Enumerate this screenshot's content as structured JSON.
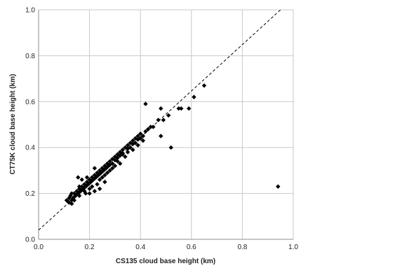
{
  "chart_data": {
    "type": "scatter",
    "title": "",
    "xlabel": "CS135 cloud base height (km)",
    "ylabel": "CT75K cloud base height (km)",
    "xlim": [
      0.0,
      1.0
    ],
    "ylim": [
      0.0,
      1.0
    ],
    "x_ticks": [
      "0.0",
      "0.2",
      "0.4",
      "0.6",
      "0.8",
      "1.0"
    ],
    "y_ticks": [
      "0.0",
      "0.2",
      "0.4",
      "0.6",
      "0.8",
      "1.0"
    ],
    "grid": true,
    "legend": "none",
    "marker": "diamond",
    "marker_color": "#000000",
    "reference_line": {
      "style": "dashed",
      "x": [
        0.0,
        0.95
      ],
      "y": [
        0.04,
        1.0
      ]
    },
    "series": [
      {
        "points": [
          [
            0.11,
            0.17
          ],
          [
            0.115,
            0.165
          ],
          [
            0.12,
            0.18
          ],
          [
            0.12,
            0.16
          ],
          [
            0.125,
            0.19
          ],
          [
            0.13,
            0.17
          ],
          [
            0.13,
            0.155
          ],
          [
            0.135,
            0.18
          ],
          [
            0.14,
            0.2
          ],
          [
            0.14,
            0.185
          ],
          [
            0.145,
            0.19
          ],
          [
            0.15,
            0.21
          ],
          [
            0.15,
            0.195
          ],
          [
            0.155,
            0.2
          ],
          [
            0.16,
            0.22
          ],
          [
            0.16,
            0.205
          ],
          [
            0.165,
            0.21
          ],
          [
            0.17,
            0.23
          ],
          [
            0.17,
            0.215
          ],
          [
            0.175,
            0.22
          ],
          [
            0.18,
            0.24
          ],
          [
            0.18,
            0.225
          ],
          [
            0.185,
            0.23
          ],
          [
            0.19,
            0.25
          ],
          [
            0.19,
            0.235
          ],
          [
            0.195,
            0.24
          ],
          [
            0.2,
            0.26
          ],
          [
            0.2,
            0.245
          ],
          [
            0.205,
            0.25
          ],
          [
            0.21,
            0.27
          ],
          [
            0.21,
            0.255
          ],
          [
            0.215,
            0.26
          ],
          [
            0.22,
            0.28
          ],
          [
            0.22,
            0.265
          ],
          [
            0.225,
            0.27
          ],
          [
            0.23,
            0.29
          ],
          [
            0.23,
            0.275
          ],
          [
            0.235,
            0.28
          ],
          [
            0.24,
            0.3
          ],
          [
            0.24,
            0.285
          ],
          [
            0.245,
            0.29
          ],
          [
            0.25,
            0.31
          ],
          [
            0.25,
            0.295
          ],
          [
            0.255,
            0.3
          ],
          [
            0.26,
            0.32
          ],
          [
            0.26,
            0.305
          ],
          [
            0.265,
            0.31
          ],
          [
            0.27,
            0.33
          ],
          [
            0.27,
            0.315
          ],
          [
            0.275,
            0.32
          ],
          [
            0.28,
            0.34
          ],
          [
            0.28,
            0.325
          ],
          [
            0.29,
            0.33
          ],
          [
            0.29,
            0.35
          ],
          [
            0.3,
            0.36
          ],
          [
            0.3,
            0.345
          ],
          [
            0.31,
            0.37
          ],
          [
            0.31,
            0.355
          ],
          [
            0.32,
            0.38
          ],
          [
            0.32,
            0.365
          ],
          [
            0.33,
            0.39
          ],
          [
            0.33,
            0.375
          ],
          [
            0.34,
            0.4
          ],
          [
            0.35,
            0.41
          ],
          [
            0.35,
            0.395
          ],
          [
            0.36,
            0.42
          ],
          [
            0.37,
            0.43
          ],
          [
            0.37,
            0.415
          ],
          [
            0.38,
            0.44
          ],
          [
            0.39,
            0.45
          ],
          [
            0.39,
            0.435
          ],
          [
            0.4,
            0.46
          ],
          [
            0.41,
            0.45
          ],
          [
            0.42,
            0.47
          ],
          [
            0.43,
            0.48
          ],
          [
            0.44,
            0.49
          ],
          [
            0.45,
            0.49
          ],
          [
            0.155,
            0.27
          ],
          [
            0.17,
            0.26
          ],
          [
            0.2,
            0.2
          ],
          [
            0.22,
            0.21
          ],
          [
            0.24,
            0.22
          ],
          [
            0.26,
            0.25
          ],
          [
            0.25,
            0.27
          ],
          [
            0.28,
            0.3
          ],
          [
            0.32,
            0.33
          ],
          [
            0.29,
            0.31
          ],
          [
            0.31,
            0.34
          ],
          [
            0.33,
            0.37
          ],
          [
            0.35,
            0.38
          ],
          [
            0.36,
            0.4
          ],
          [
            0.38,
            0.42
          ],
          [
            0.4,
            0.44
          ],
          [
            0.185,
            0.2
          ],
          [
            0.2,
            0.22
          ],
          [
            0.23,
            0.24
          ],
          [
            0.13,
            0.2
          ],
          [
            0.14,
            0.17
          ],
          [
            0.16,
            0.19
          ],
          [
            0.18,
            0.21
          ],
          [
            0.21,
            0.23
          ],
          [
            0.24,
            0.26
          ],
          [
            0.26,
            0.28
          ],
          [
            0.27,
            0.29
          ],
          [
            0.3,
            0.32
          ],
          [
            0.34,
            0.36
          ],
          [
            0.37,
            0.39
          ],
          [
            0.39,
            0.41
          ],
          [
            0.41,
            0.43
          ],
          [
            0.16,
            0.23
          ],
          [
            0.19,
            0.27
          ],
          [
            0.22,
            0.31
          ],
          [
            0.42,
            0.59
          ],
          [
            0.47,
            0.52
          ],
          [
            0.48,
            0.45
          ],
          [
            0.48,
            0.57
          ],
          [
            0.49,
            0.52
          ],
          [
            0.51,
            0.54
          ],
          [
            0.52,
            0.4
          ],
          [
            0.55,
            0.57
          ],
          [
            0.56,
            0.57
          ],
          [
            0.59,
            0.57
          ],
          [
            0.61,
            0.62
          ],
          [
            0.65,
            0.67
          ],
          [
            0.94,
            0.23
          ]
        ]
      }
    ]
  }
}
